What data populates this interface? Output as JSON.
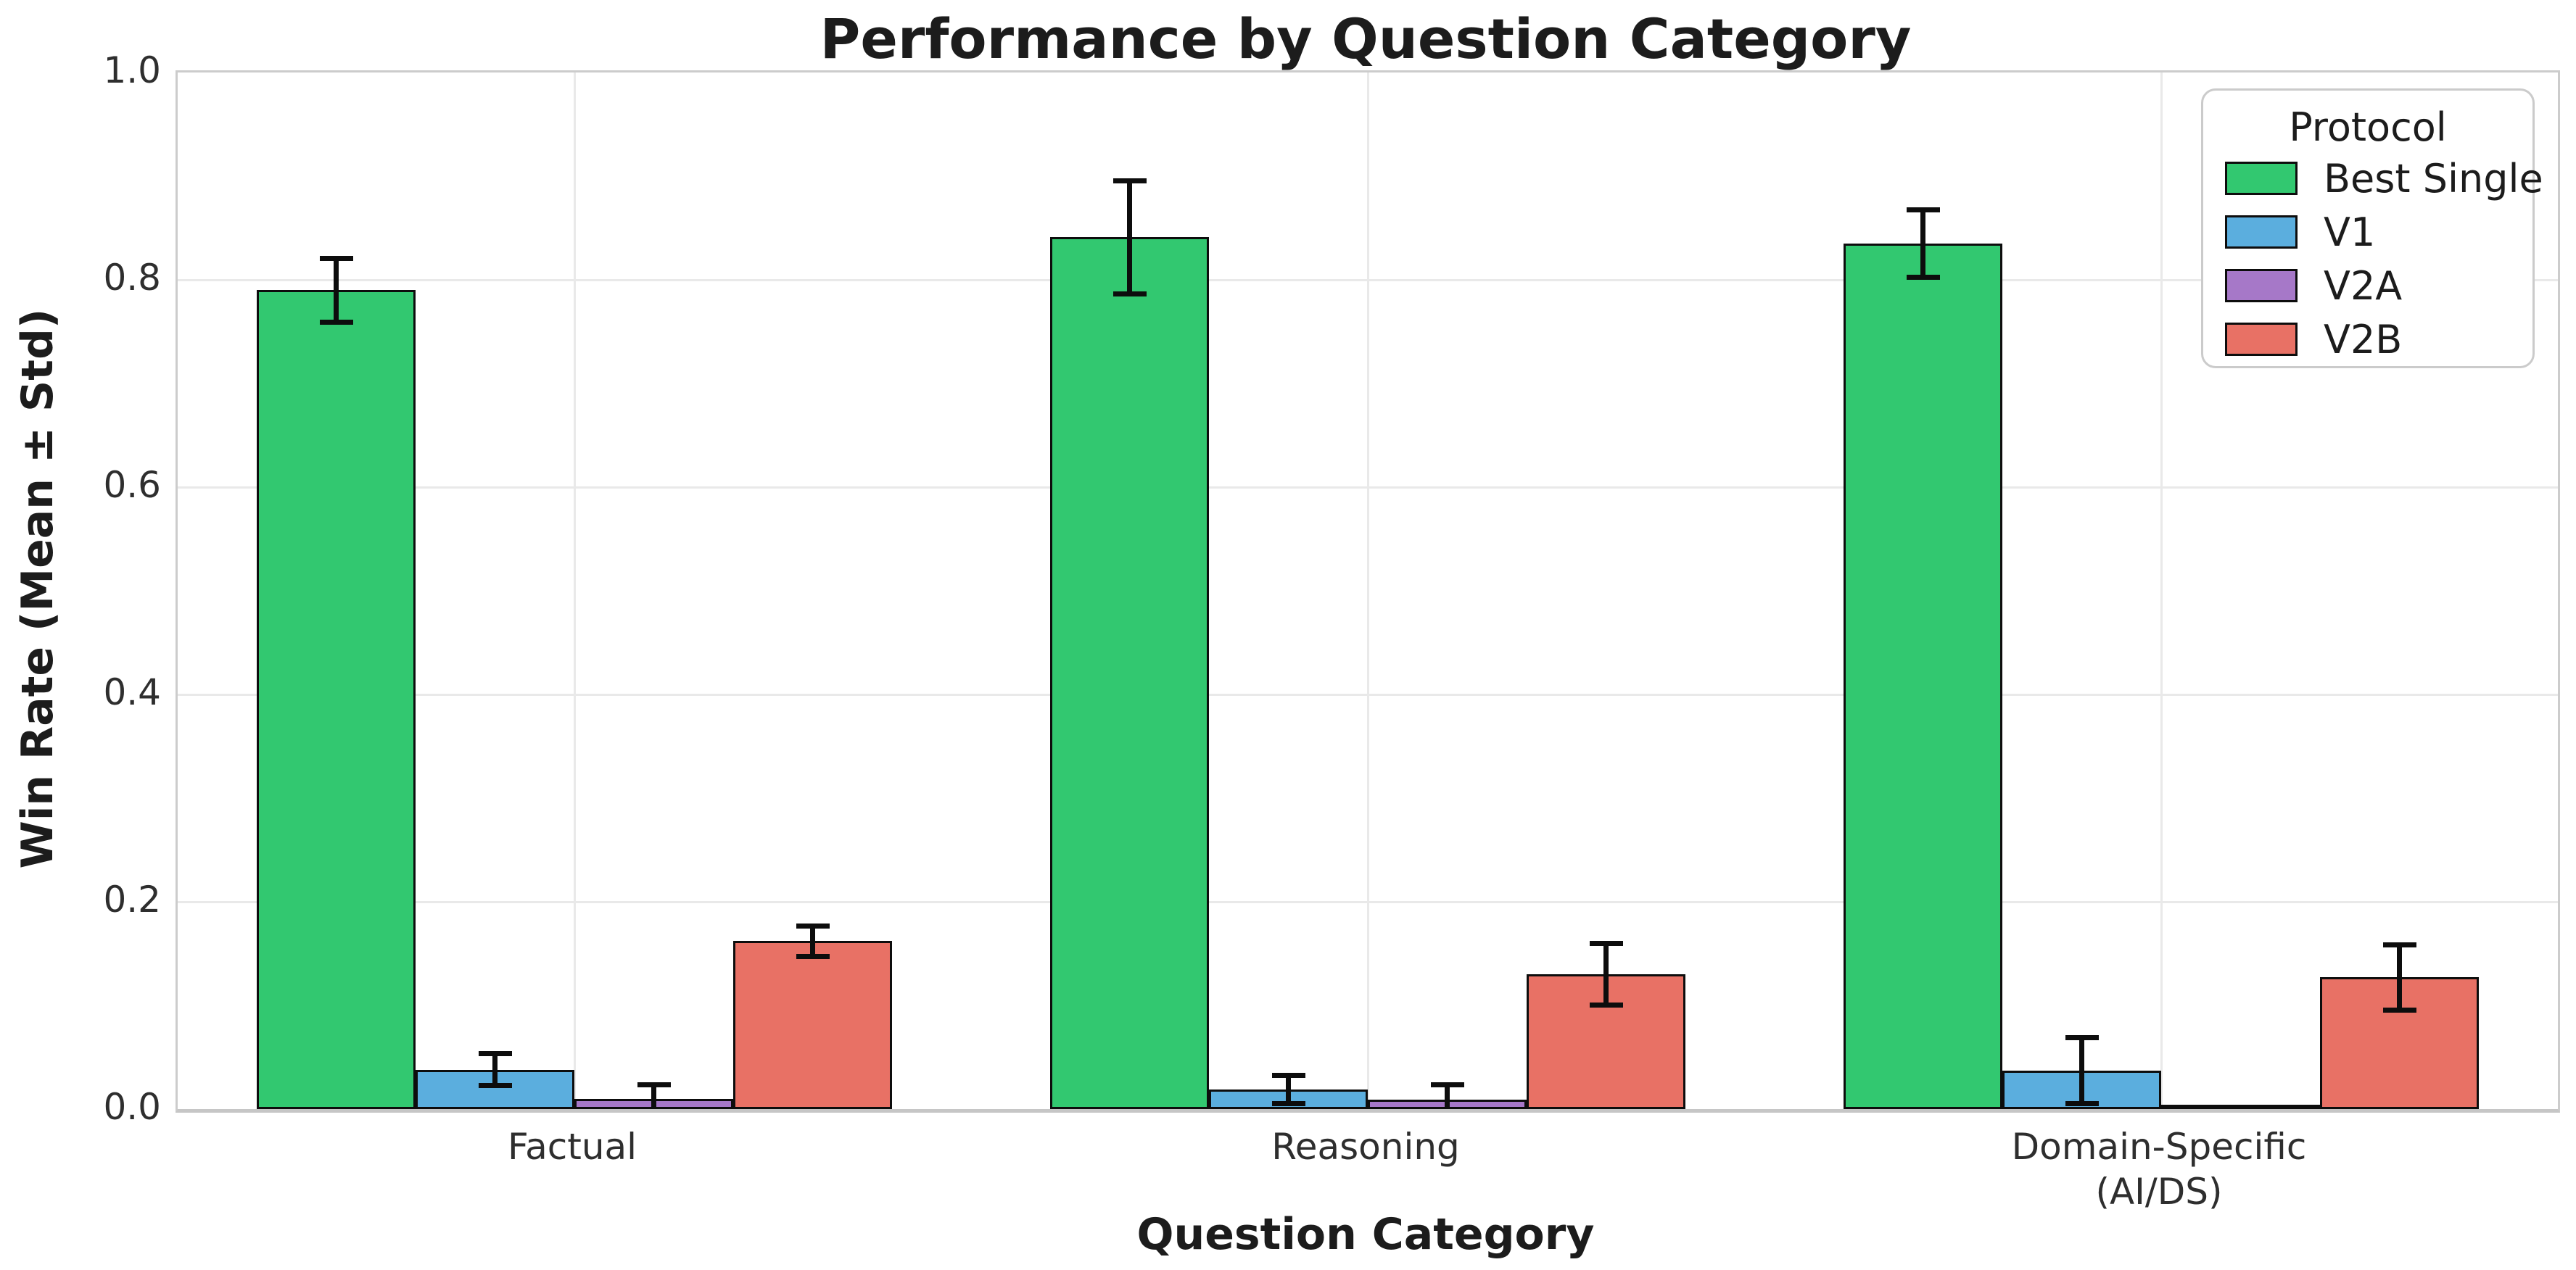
{
  "chart_data": {
    "type": "bar",
    "title": "Performance by Question Category",
    "xlabel": "Question Category",
    "ylabel": "Win Rate (Mean ± Std)",
    "ylim": [
      0.0,
      1.0
    ],
    "y_ticks": [
      "0.0",
      "0.2",
      "0.4",
      "0.6",
      "0.8",
      "1.0"
    ],
    "grid": true,
    "legend_title": "Protocol",
    "legend_position": "upper right",
    "error_bars": "mean ± std",
    "categories": [
      "Factual",
      "Reasoning",
      "Domain-Specific\n(AI/DS)"
    ],
    "series": [
      {
        "name": "Best Single",
        "color": "#32c870",
        "values": [
          0.79,
          0.841,
          0.835
        ],
        "std": [
          0.033,
          0.057,
          0.035
        ]
      },
      {
        "name": "V1",
        "color": "#5baede",
        "values": [
          0.038,
          0.019,
          0.037
        ],
        "std": [
          0.018,
          0.016,
          0.034
        ]
      },
      {
        "name": "V2A",
        "color": "#a678c8",
        "values": [
          0.01,
          0.009,
          0.002
        ],
        "std": [
          0.016,
          0.017,
          0.0
        ]
      },
      {
        "name": "V2B",
        "color": "#e87165",
        "values": [
          0.162,
          0.13,
          0.127
        ],
        "std": [
          0.017,
          0.032,
          0.034
        ]
      }
    ]
  }
}
